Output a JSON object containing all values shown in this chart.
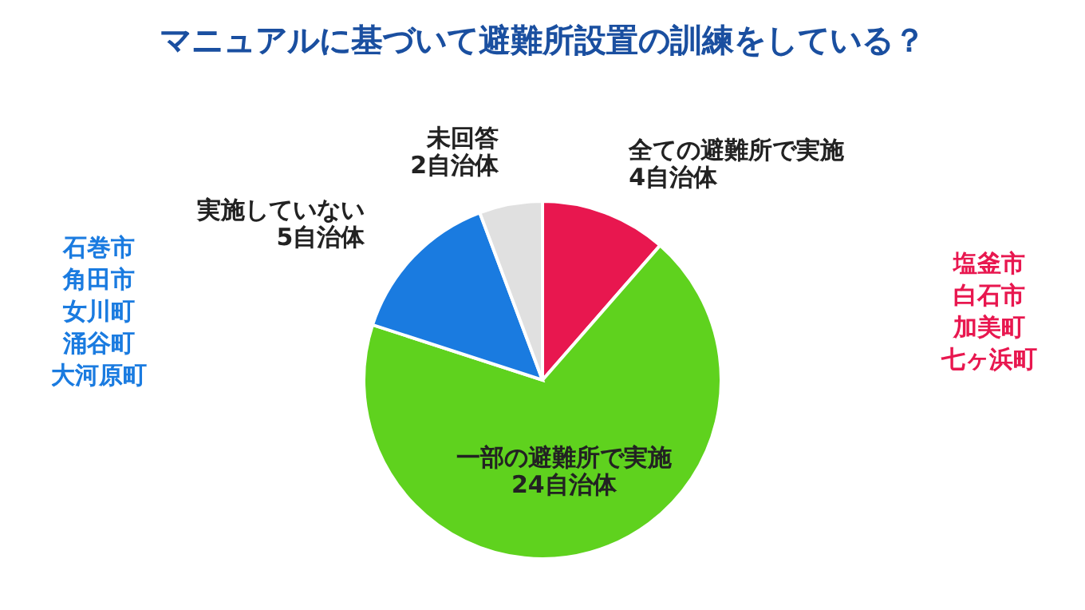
{
  "chart_data": {
    "type": "pie",
    "title": "マニュアルに基づいて避難所設置の訓練をしている？",
    "categories": [
      "全ての避難所で実施",
      "一部の避難所で実施",
      "実施していない",
      "未回答"
    ],
    "values": [
      4,
      24,
      5,
      2
    ],
    "colors": [
      "#e8174f",
      "#5fd21e",
      "#1a7be0",
      "#e0e0e0"
    ],
    "value_labels": [
      "4自治体",
      "24自治体",
      "5自治体",
      "2自治体"
    ],
    "annotations": [
      "塩釜市",
      "白石市",
      "加美町",
      "七ヶ浜町",
      "石巻市",
      "角田市",
      "女川町",
      "涌谷町",
      "大河原町"
    ],
    "legend": false
  }
}
